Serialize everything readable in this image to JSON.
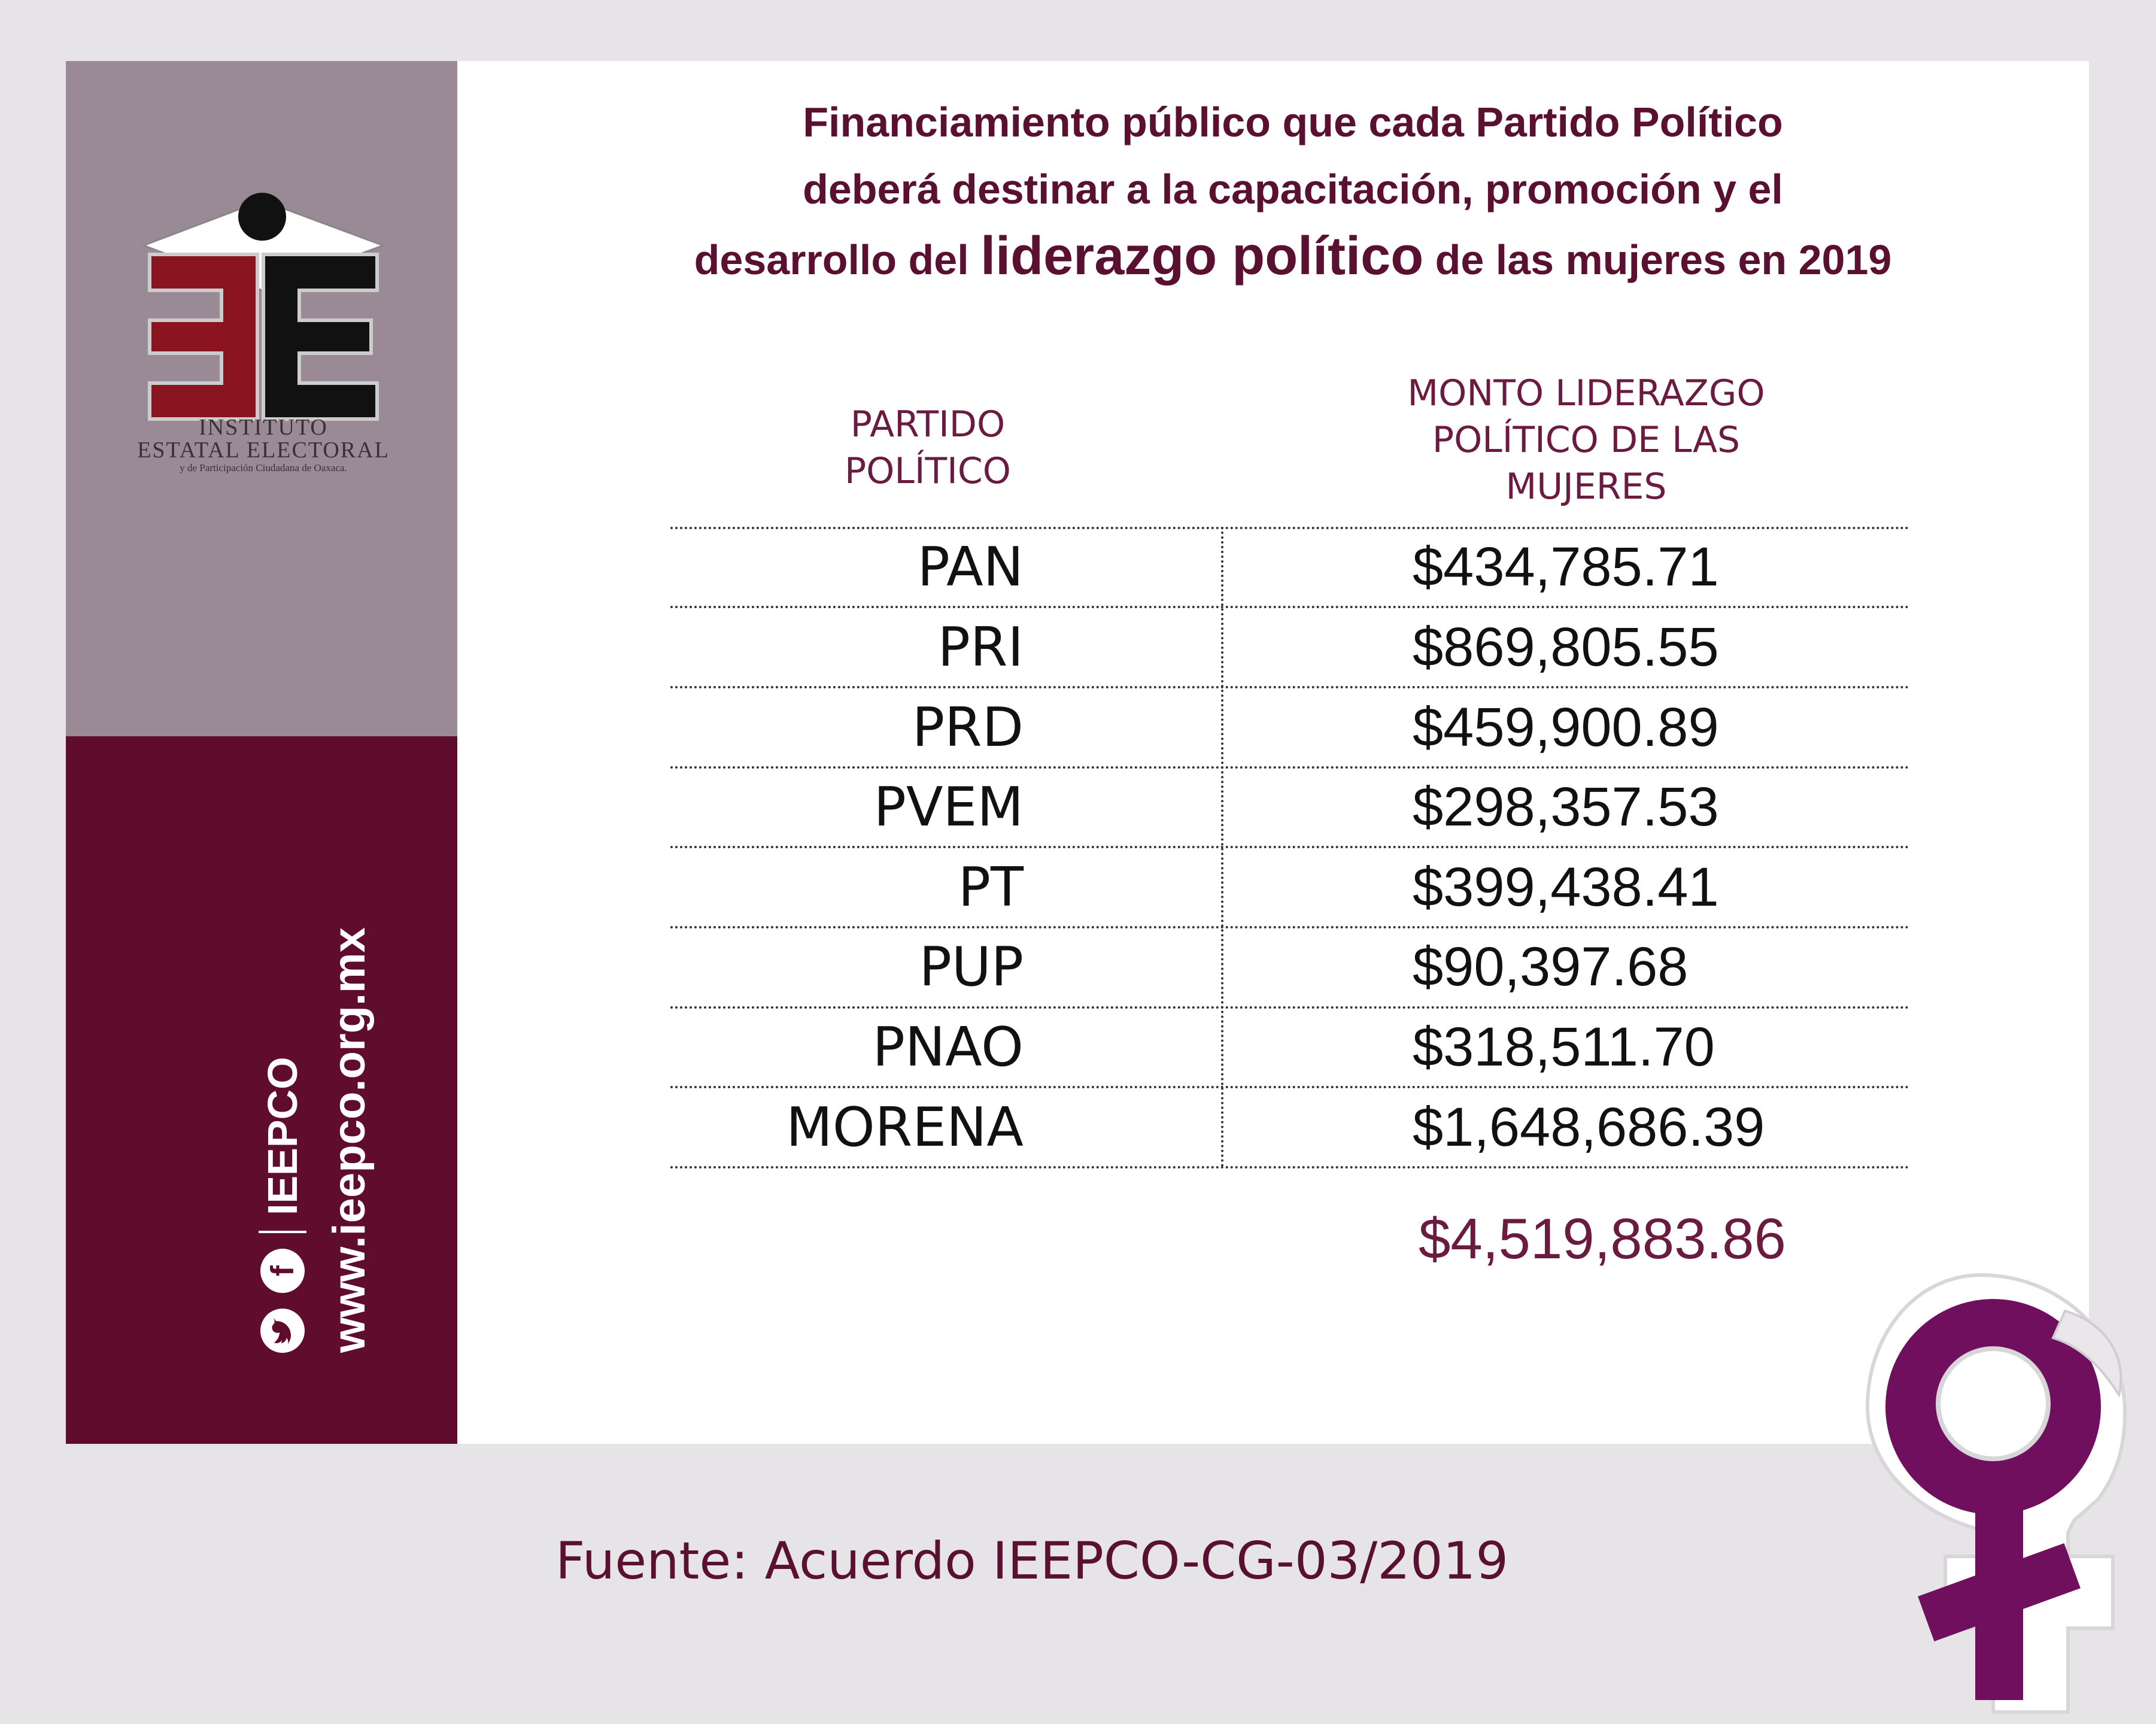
{
  "logo": {
    "line1": "INSTITUTO",
    "line2": "ESTATAL ELECTORAL",
    "line3": "y de Participación Ciudadana de Oaxaca."
  },
  "sidebar": {
    "url": "www.ieepco.org.mx",
    "handle": "IEEPCO",
    "twitter_icon": "twitter-icon",
    "facebook_icon": "facebook-icon",
    "facebook_glyph": "f"
  },
  "title": {
    "line1": "Financiamiento público que cada Partido Político",
    "line2": "deberá destinar a la capacitación, promoción y el",
    "line3_pre": "desarrollo del ",
    "line3_emph": "liderazgo político",
    "line3_post": " de las mujeres en 2019"
  },
  "table": {
    "headers": {
      "party": [
        "PARTIDO",
        "POLÍTICO"
      ],
      "amount": [
        "MONTO LIDERAZGO",
        "POLÍTICO DE LAS",
        "MUJERES"
      ]
    },
    "rows": [
      {
        "party": "PAN",
        "amount": "$434,785.71"
      },
      {
        "party": "PRI",
        "amount": "$869,805.55"
      },
      {
        "party": "PRD",
        "amount": "$459,900.89"
      },
      {
        "party": "PVEM",
        "amount": "$298,357.53"
      },
      {
        "party": "PT",
        "amount": "$399,438.41"
      },
      {
        "party": "PUP",
        "amount": "$90,397.68"
      },
      {
        "party": "PNAO",
        "amount": "$318,511.70"
      },
      {
        "party": "MORENA",
        "amount": "$1,648,686.39"
      }
    ],
    "total": "$4,519,883.86"
  },
  "source": "Fuente: Acuerdo IEEPCO-CG-03/2019",
  "colors": {
    "brand_dark": "#5f0c2d",
    "brand_grey": "#9a8a96",
    "accent_purple": "#6f0f5e",
    "logo_red": "#8a1420"
  }
}
